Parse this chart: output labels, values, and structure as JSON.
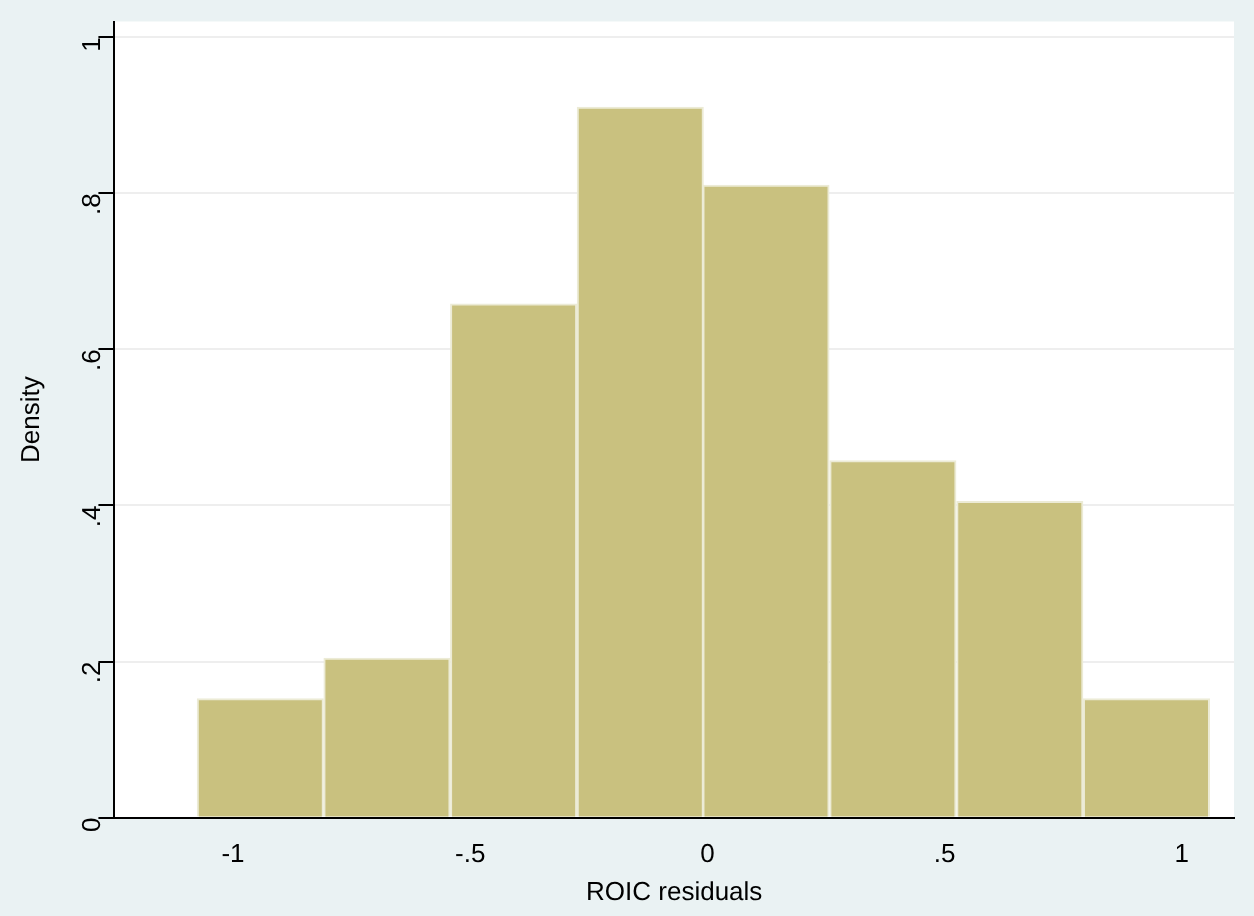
{
  "chart_data": {
    "type": "histogram",
    "xlabel": "ROIC residuals",
    "ylabel": "Density",
    "bins": [
      -1.077,
      -0.808,
      -0.543,
      -0.274,
      -0.009,
      0.256,
      0.526,
      0.791,
      1.06
    ],
    "values": [
      0.152,
      0.204,
      0.658,
      0.91,
      0.81,
      0.457,
      0.405,
      0.152
    ],
    "color": "#c9c17f",
    "xlim": [
      -1.25,
      1.11
    ],
    "xticks": [
      -1,
      {
        "value": -0.5,
        "label": "-.5"
      },
      0,
      {
        "value": 0.5,
        "label": ".5"
      },
      1
    ],
    "ylim": [
      0,
      1.02
    ],
    "yticks": [
      0,
      {
        "value": 0.2,
        "label": ".2"
      },
      {
        "value": 0.4,
        "label": ".4"
      },
      {
        "value": 0.6,
        "label": ".6"
      },
      {
        "value": 0.8,
        "label": ".8"
      },
      1
    ],
    "grid": "y",
    "legend": false
  }
}
